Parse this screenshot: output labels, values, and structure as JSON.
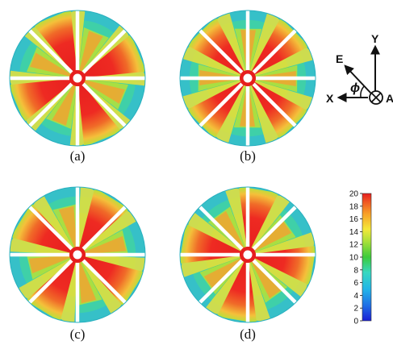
{
  "figure": {
    "panels": [
      {
        "label": "(a)",
        "rotation": 0
      },
      {
        "label": "(b)",
        "rotation": -22
      },
      {
        "label": "(c)",
        "rotation": -36
      },
      {
        "label": "(d)",
        "rotation": -58
      }
    ],
    "coordinate_system": {
      "e_label": "E",
      "y_label": "Y",
      "x_label": "X",
      "phi_label": "ϕ",
      "partial_label": "A"
    },
    "colorbar": {
      "min": 0,
      "max": 20,
      "ticks": [
        "0",
        "2",
        "4",
        "6",
        "8",
        "10",
        "12",
        "14",
        "16",
        "18",
        "20"
      ],
      "colors": [
        "#1d2ee0",
        "#1f9ae8",
        "#32d3d3",
        "#7fdc9a",
        "#3ccb3a",
        "#b5e23a",
        "#f4e83a",
        "#f8a028",
        "#f05a24",
        "#e61e1e"
      ]
    }
  }
}
